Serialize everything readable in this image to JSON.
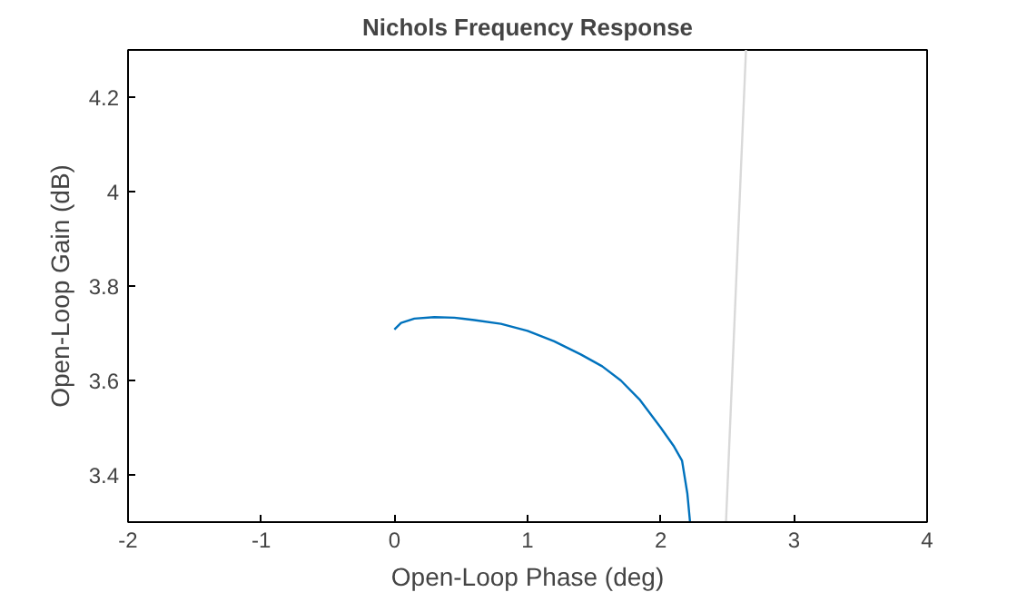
{
  "chart_data": {
    "type": "line",
    "title": "Nichols Frequency Response",
    "xlabel": "Open-Loop Phase (deg)",
    "ylabel": "Open-Loop Gain (dB)",
    "xlim": [
      -2,
      4
    ],
    "ylim": [
      3.3,
      4.3
    ],
    "xticks": [
      -2,
      -1,
      0,
      1,
      2,
      3,
      4
    ],
    "yticks": [
      3.4,
      3.6,
      3.8,
      4,
      4.2
    ],
    "grid": false,
    "series": [
      {
        "color": "#0072bd",
        "x": [
          0.0,
          0.05,
          0.15,
          0.3,
          0.45,
          0.6,
          0.8,
          1.0,
          1.2,
          1.4,
          1.56,
          1.7,
          1.84,
          2.0,
          2.1,
          2.16,
          2.2,
          2.22
        ],
        "values": [
          3.708,
          3.722,
          3.731,
          3.734,
          3.733,
          3.728,
          3.72,
          3.705,
          3.683,
          3.655,
          3.63,
          3.6,
          3.56,
          3.5,
          3.46,
          3.43,
          3.36,
          3.3
        ]
      },
      {
        "color": "#d9d9d9",
        "x": [
          2.49,
          2.64
        ],
        "values": [
          3.3,
          4.3
        ]
      }
    ]
  }
}
